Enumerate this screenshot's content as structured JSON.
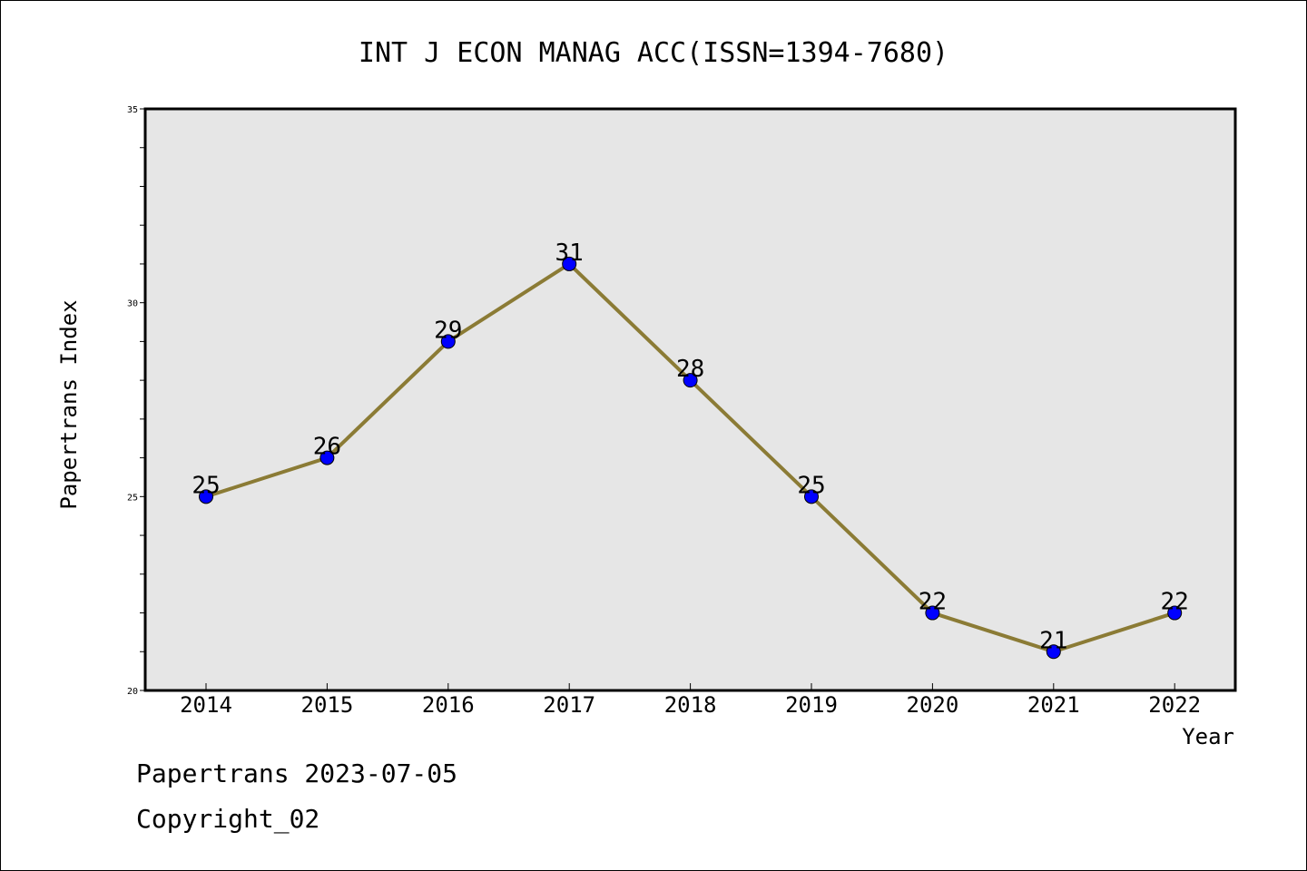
{
  "chart_data": {
    "type": "line",
    "title": "INT J ECON MANAG ACC(ISSN=1394-7680)",
    "xlabel": "Year",
    "ylabel": "Papertrans Index",
    "categories": [
      "2014",
      "2015",
      "2016",
      "2017",
      "2018",
      "2019",
      "2020",
      "2021",
      "2022"
    ],
    "series": [
      {
        "values": [
          25,
          26,
          29,
          31,
          28,
          25,
          22,
          21,
          22
        ]
      }
    ],
    "ylim": [
      20,
      35
    ],
    "yticks": [
      20,
      25,
      30,
      35
    ],
    "grid": false,
    "colors": {
      "line": "#8B7B35",
      "marker": "#0000FF",
      "plot_background": "#E6E6E6"
    }
  },
  "footer": {
    "line1": "Papertrans 2023-07-05",
    "line2": "Copyright_02"
  }
}
